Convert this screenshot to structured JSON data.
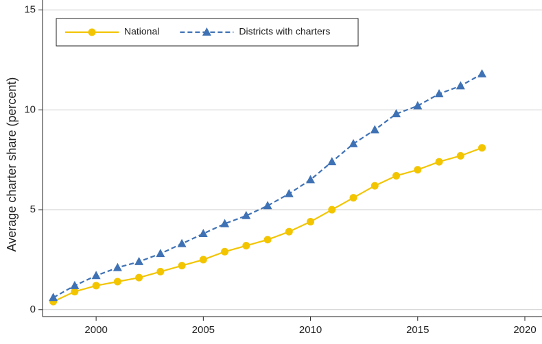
{
  "chart_data": {
    "type": "line",
    "y_label": "Average charter share (percent)",
    "x": [
      1998,
      1999,
      2000,
      2001,
      2002,
      2003,
      2004,
      2005,
      2006,
      2007,
      2008,
      2009,
      2010,
      2011,
      2012,
      2013,
      2014,
      2015,
      2016,
      2017,
      2018
    ],
    "series": [
      {
        "name": "National",
        "color": "#f2c500",
        "marker": "circle",
        "dash": "solid",
        "values": [
          0.4,
          0.9,
          1.2,
          1.4,
          1.6,
          1.9,
          2.2,
          2.5,
          2.9,
          3.2,
          3.5,
          3.9,
          4.4,
          5.0,
          5.6,
          6.2,
          6.7,
          7.0,
          7.4,
          7.7,
          8.1
        ]
      },
      {
        "name": "Districts with charters",
        "color": "#3f72b5",
        "marker": "triangle",
        "dash": "dashed",
        "values": [
          0.6,
          1.2,
          1.7,
          2.1,
          2.4,
          2.8,
          3.3,
          3.8,
          4.3,
          4.7,
          5.2,
          5.8,
          6.5,
          7.4,
          8.3,
          9.0,
          9.8,
          10.2,
          10.8,
          11.2,
          11.8
        ]
      }
    ],
    "xlim": [
      1997.5,
      2020.8
    ],
    "xticks": [
      2000,
      2005,
      2010,
      2015,
      2020
    ],
    "ylim": [
      -0.35,
      15.5
    ],
    "yticks": [
      0,
      5,
      10,
      15
    ],
    "grid": true,
    "legend": "top-left"
  }
}
